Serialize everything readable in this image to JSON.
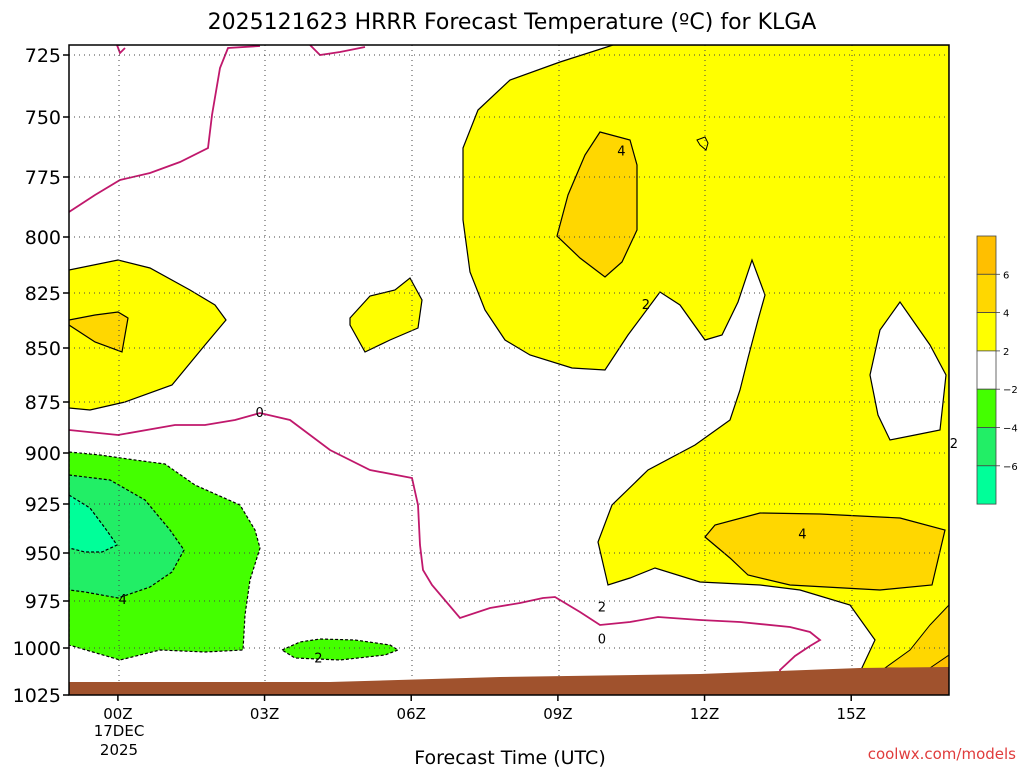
{
  "chart_data": {
    "type": "heatmap",
    "title": "2025121623 HRRR Forecast Temperature (ºC) for KLGA",
    "xlabel": "Forecast Time (UTC)",
    "ylabel": "",
    "credit": "coolwx.com/models",
    "x_date_label": [
      "17DEC",
      "2025"
    ],
    "xlim_hours": [
      -1,
      17
    ],
    "ylim_hpa": [
      1025,
      725
    ],
    "x_ticks": [
      {
        "hour": 0,
        "label": "00Z"
      },
      {
        "hour": 3,
        "label": "03Z"
      },
      {
        "hour": 6,
        "label": "06Z"
      },
      {
        "hour": 9,
        "label": "09Z"
      },
      {
        "hour": 12,
        "label": "12Z"
      },
      {
        "hour": 15,
        "label": "15Z"
      }
    ],
    "y_ticks": [
      {
        "p": 725,
        "label": "725"
      },
      {
        "p": 750,
        "label": "750"
      },
      {
        "p": 775,
        "label": "775"
      },
      {
        "p": 800,
        "label": "800"
      },
      {
        "p": 825,
        "label": "825"
      },
      {
        "p": 850,
        "label": "850"
      },
      {
        "p": 875,
        "label": "875"
      },
      {
        "p": 900,
        "label": "900"
      },
      {
        "p": 925,
        "label": "925"
      },
      {
        "p": 950,
        "label": "950"
      },
      {
        "p": 975,
        "label": "975"
      },
      {
        "p": 1000,
        "label": "1000"
      },
      {
        "p": 1025,
        "label": "1025"
      }
    ],
    "grid": true,
    "colors": {
      "warm2": "#ffff00",
      "warm4": "#ffd700",
      "warm6": "#ffbf00",
      "cold2": "#44ff00",
      "cold4": "#22ee66",
      "cold6": "#00ff99",
      "ground": "#a0522d",
      "zero_line": "#c0186c"
    },
    "legend": {
      "position": "right",
      "bins": [
        {
          "color": "#ffbf00",
          "label": "6"
        },
        {
          "color": "#ffd700",
          "label": "4"
        },
        {
          "color": "#ffff00",
          "label": "2"
        },
        {
          "color": "#ffffff",
          "label": "−2"
        },
        {
          "color": "#44ff00",
          "label": "−4"
        },
        {
          "color": "#22ee66",
          "label": "−6"
        },
        {
          "color": "#00ff99",
          "label": ""
        }
      ]
    },
    "contour_labels": [
      {
        "hour": 10.3,
        "p": 764,
        "label": "4"
      },
      {
        "hour": 10.8,
        "p": 830,
        "label": "2"
      },
      {
        "hour": 17.1,
        "p": 895,
        "label": "2"
      },
      {
        "hour": 2.9,
        "p": 880,
        "label": "0"
      },
      {
        "hour": 14.0,
        "p": 940,
        "label": "4"
      },
      {
        "hour": 9.9,
        "p": 978,
        "label": "2"
      },
      {
        "hour": 9.9,
        "p": 995,
        "label": "0"
      },
      {
        "hour": 0.1,
        "p": 974,
        "label": "4"
      },
      {
        "hour": 4.1,
        "p": 1005,
        "label": "2"
      }
    ]
  }
}
